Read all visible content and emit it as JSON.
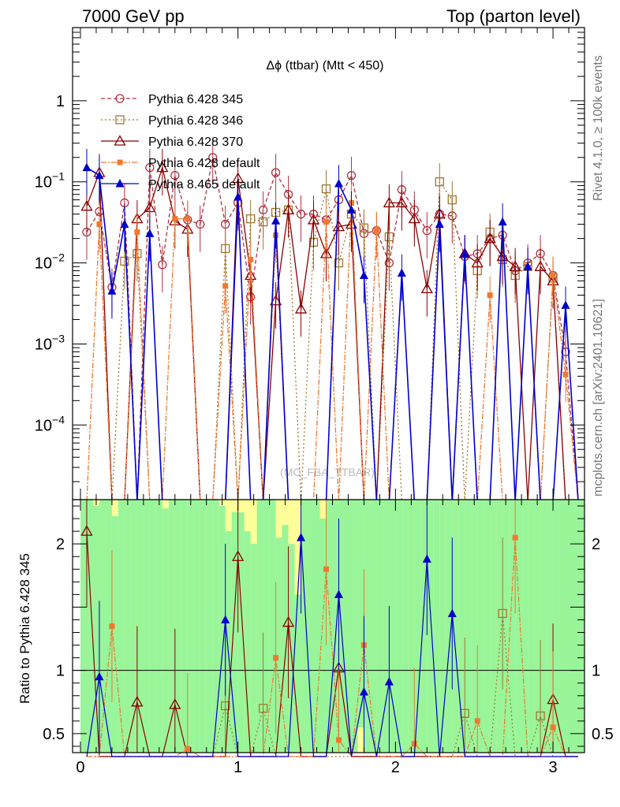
{
  "header": {
    "left": "7000 GeV pp",
    "right": "Top (parton level)"
  },
  "side_labels": {
    "rivet": "Rivet 4.1.0, ≥ 100k events",
    "mcplots": "mcplots.cern.ch [arXiv:2401.10621]"
  },
  "watermark": "(MC_FBA_TTBAR)",
  "colors": {
    "s345": "#b03040",
    "s346": "#a07830",
    "s370": "#8b0000",
    "s6def": "#f07830",
    "s8def": "#0000cc",
    "band_green": "#99f599",
    "band_yellow": "#ffff99"
  },
  "chart_data": [
    {
      "type": "line",
      "panel": "main",
      "title": "Δϕ (ttbar) (Mtt < 450)",
      "yscale": "log",
      "ylim": [
        1.2e-05,
        8
      ],
      "xlim": [
        -0.05,
        3.2
      ],
      "ytick_labels": [
        "1",
        "10^-1",
        "10^-2",
        "10^-3",
        "10^-4"
      ],
      "ytick_values": [
        1,
        0.1,
        0.01,
        0.001,
        0.0001
      ],
      "legend_position": "top-left",
      "x": [
        0.04,
        0.12,
        0.2,
        0.28,
        0.36,
        0.44,
        0.52,
        0.6,
        0.68,
        0.76,
        0.84,
        0.92,
        1.0,
        1.08,
        1.16,
        1.24,
        1.32,
        1.4,
        1.48,
        1.56,
        1.64,
        1.72,
        1.8,
        1.88,
        1.96,
        2.04,
        2.12,
        2.2,
        2.28,
        2.36,
        2.44,
        2.52,
        2.6,
        2.68,
        2.76,
        2.84,
        2.92,
        3.0,
        3.08,
        3.16
      ],
      "series": [
        {
          "name": "Pythia 6.428 345",
          "key": "s345",
          "marker": "circle",
          "dash": "5,3",
          "values": [
            0.024,
            0.043,
            0.005,
            0.055,
            null,
            0.15,
            0.0095,
            0.12,
            0.034,
            0.03,
            0.2,
            0.03,
            0.055,
            0.0038,
            0.045,
            0.13,
            0.07,
            0.04,
            0.04,
            0.034,
            0.06,
            0.12,
            0.023,
            0.025,
            0.01,
            0.08,
            0.045,
            0.025,
            0.04,
            0.038,
            0.012,
            0.013,
            0.02,
            0.022,
            0.008,
            0.01,
            0.013,
            0.007,
            0.0008,
            null
          ]
        },
        {
          "name": "Pythia 6.428 346",
          "key": "s346",
          "marker": "square",
          "dash": "2,3",
          "values": [
            null,
            null,
            null,
            0.0105,
            0.013,
            null,
            null,
            null,
            null,
            null,
            null,
            0.015,
            null,
            0.035,
            0.032,
            0.042,
            0.045,
            null,
            0.018,
            0.082,
            0.01,
            0.04,
            0.027,
            null,
            0.021,
            null,
            null,
            null,
            0.1,
            0.06,
            null,
            0.008,
            0.024,
            0.011,
            0.007,
            0.009,
            null,
            0.0065,
            null,
            null
          ]
        },
        {
          "name": "Pythia 6.428 370",
          "key": "s370",
          "marker": "triangle-open",
          "dash": "",
          "values": [
            0.05,
            0.13,
            null,
            null,
            0.035,
            0.048,
            0.15,
            0.033,
            0.026,
            null,
            null,
            null,
            0.11,
            0.007,
            null,
            0.0034,
            0.045,
            0.0027,
            0.034,
            0.013,
            0.028,
            0.03,
            null,
            null,
            0.055,
            0.055,
            0.035,
            0.0048,
            0.04,
            null,
            0.013,
            0.01,
            0.02,
            0.012,
            0.009,
            null,
            0.009,
            0.006,
            null,
            null
          ]
        },
        {
          "name": "Pythia 6.428 default",
          "key": "s6def",
          "marker": "square-filled",
          "dash": "7,2,2,2",
          "values": [
            null,
            0.03,
            null,
            null,
            0.024,
            null,
            null,
            0.035,
            0.035,
            null,
            null,
            0.0052,
            null,
            0.011,
            null,
            0.022,
            null,
            null,
            null,
            0.032,
            null,
            0.055,
            null,
            0.025,
            null,
            null,
            null,
            null,
            null,
            null,
            null,
            null,
            0.004,
            null,
            null,
            null,
            null,
            0.007,
            0.00042,
            null
          ]
        },
        {
          "name": "Pythia 8.465 default",
          "key": "s8def",
          "marker": "triangle-filled",
          "dash": "",
          "values": [
            0.15,
            0.12,
            0.0045,
            0.03,
            null,
            0.023,
            null,
            null,
            null,
            null,
            null,
            null,
            0.065,
            null,
            null,
            0.033,
            null,
            null,
            null,
            null,
            0.095,
            0.045,
            0.007,
            null,
            null,
            0.0075,
            null,
            null,
            0.03,
            null,
            0.013,
            null,
            null,
            0.032,
            null,
            0.009,
            null,
            null,
            0.003,
            null
          ]
        }
      ]
    },
    {
      "type": "line",
      "panel": "ratio",
      "ylabel": "Ratio to Pythia 6.428 345",
      "ylim": [
        0.35,
        2.35
      ],
      "ytick_labels": [
        "2",
        "1",
        "0.5"
      ],
      "ytick_values": [
        2,
        1,
        0.5
      ],
      "xtick_labels": [
        "0",
        "1",
        "2",
        "3"
      ],
      "xtick_values": [
        0,
        1,
        2,
        3
      ],
      "reference": 1,
      "band_bins": [
        0,
        0.04,
        0.08,
        0.12,
        0.16,
        0.2,
        0.24,
        0.28,
        0.32,
        0.36,
        0.4,
        0.44,
        0.48,
        0.52,
        0.56,
        0.6,
        0.64,
        0.68,
        0.72,
        0.76,
        0.8,
        0.84,
        0.88,
        0.92,
        0.96,
        1.0,
        1.04,
        1.08,
        1.12,
        1.16,
        1.2,
        1.24,
        1.28,
        1.32,
        1.36,
        1.4,
        1.44,
        1.48,
        1.52,
        1.56,
        1.6,
        1.64,
        1.68,
        1.72,
        1.76,
        1.8,
        1.84,
        1.88,
        1.92,
        1.96,
        2.0,
        2.04,
        2.08,
        2.12,
        2.16,
        2.2,
        2.24,
        2.28,
        2.32,
        2.36,
        2.4,
        2.44,
        2.48,
        2.52,
        2.56,
        2.6,
        2.64,
        2.68,
        2.72,
        2.76,
        2.8,
        2.84,
        2.88,
        2.92,
        2.96,
        3.0,
        3.04,
        3.08,
        3.12,
        3.16
      ],
      "band_green": [
        [
          0.35,
          2.35
        ],
        [
          0.35,
          2.35
        ],
        [
          0.35,
          2.3
        ],
        [
          0.35,
          2.35
        ],
        [
          0.35,
          2.35
        ],
        [
          0.35,
          2.22
        ],
        [
          0.35,
          2.35
        ],
        [
          0.35,
          2.35
        ],
        [
          0.35,
          2.35
        ],
        [
          0.35,
          2.35
        ],
        [
          0.35,
          2.35
        ],
        [
          0.35,
          2.35
        ],
        [
          0.35,
          2.35
        ],
        [
          0.35,
          2.28
        ],
        [
          0.35,
          2.35
        ],
        [
          0.35,
          2.35
        ],
        [
          0.35,
          2.35
        ],
        [
          0.35,
          2.35
        ],
        [
          0.35,
          2.35
        ],
        [
          0.35,
          2.35
        ],
        [
          0.35,
          2.35
        ],
        [
          0.35,
          2.35
        ],
        [
          0.35,
          2.3
        ],
        [
          0.35,
          2.1
        ],
        [
          0.35,
          2.25
        ],
        [
          0.35,
          2.25
        ],
        [
          0.35,
          2.1
        ],
        [
          0.35,
          2.0
        ],
        [
          0.35,
          2.35
        ],
        [
          0.35,
          2.35
        ],
        [
          0.35,
          2.35
        ],
        [
          0.35,
          2.05
        ],
        [
          0.35,
          2.15
        ],
        [
          0.35,
          2.0
        ],
        [
          0.35,
          1.6
        ],
        [
          0.35,
          2.35
        ],
        [
          0.35,
          2.35
        ],
        [
          0.35,
          2.35
        ],
        [
          0.35,
          2.2
        ],
        [
          0.35,
          2.35
        ],
        [
          0.35,
          2.35
        ],
        [
          0.35,
          2.35
        ],
        [
          0.35,
          2.35
        ],
        [
          0.35,
          2.35
        ],
        [
          0.55,
          2.35
        ],
        [
          0.35,
          2.35
        ],
        [
          0.35,
          2.35
        ],
        [
          0.35,
          2.35
        ],
        [
          0.35,
          2.35
        ],
        [
          0.35,
          2.35
        ],
        [
          0.35,
          2.35
        ],
        [
          0.35,
          2.35
        ],
        [
          0.35,
          2.35
        ],
        [
          0.35,
          2.35
        ],
        [
          0.35,
          2.35
        ],
        [
          0.35,
          2.35
        ],
        [
          0.35,
          2.35
        ],
        [
          0.35,
          2.35
        ],
        [
          0.35,
          2.35
        ],
        [
          0.35,
          2.35
        ],
        [
          0.35,
          2.35
        ],
        [
          0.35,
          2.35
        ],
        [
          0.35,
          2.35
        ],
        [
          0.35,
          2.35
        ],
        [
          0.35,
          2.35
        ],
        [
          0.35,
          2.35
        ],
        [
          0.35,
          2.35
        ],
        [
          0.35,
          2.35
        ],
        [
          0.35,
          2.35
        ],
        [
          0.35,
          2.35
        ],
        [
          0.35,
          2.35
        ],
        [
          0.35,
          2.35
        ],
        [
          0.35,
          2.35
        ],
        [
          0.35,
          2.35
        ],
        [
          0.35,
          2.35
        ],
        [
          0.35,
          2.35
        ],
        [
          0.35,
          2.35
        ],
        [
          0.35,
          2.35
        ],
        [
          0.35,
          2.35
        ],
        [
          0.35,
          2.35
        ]
      ],
      "series": [
        {
          "key": "s346",
          "marker": "square",
          "values": [
            null,
            null,
            null,
            null,
            null,
            null,
            null,
            null,
            null,
            null,
            null,
            0.72,
            null,
            null,
            0.7,
            null,
            null,
            null,
            null,
            null,
            null,
            null,
            null,
            null,
            null,
            null,
            null,
            null,
            null,
            null,
            0.66,
            null,
            null,
            1.45,
            null,
            null,
            0.64,
            null,
            null,
            null
          ]
        },
        {
          "key": "s370",
          "marker": "triangle-open",
          "values": [
            2.1,
            null,
            null,
            null,
            0.75,
            null,
            null,
            0.73,
            null,
            null,
            null,
            null,
            1.9,
            null,
            null,
            null,
            1.38,
            null,
            null,
            null,
            1.02,
            null,
            null,
            null,
            null,
            null,
            null,
            null,
            null,
            null,
            null,
            null,
            null,
            null,
            null,
            null,
            null,
            0.77,
            null,
            null
          ]
        },
        {
          "key": "s6def",
          "marker": "square-filled",
          "values": [
            null,
            null,
            1.35,
            null,
            null,
            null,
            null,
            null,
            0.38,
            null,
            null,
            null,
            null,
            null,
            null,
            1.1,
            null,
            null,
            null,
            1.8,
            0.45,
            null,
            1.2,
            null,
            null,
            null,
            0.42,
            null,
            null,
            null,
            null,
            0.6,
            null,
            null,
            2.05,
            null,
            null,
            0.55,
            null,
            null
          ]
        },
        {
          "key": "s8def",
          "marker": "triangle-filled",
          "values": [
            null,
            0.95,
            null,
            null,
            null,
            null,
            null,
            null,
            null,
            null,
            null,
            1.4,
            null,
            null,
            null,
            null,
            null,
            2.05,
            null,
            null,
            1.6,
            null,
            0.83,
            null,
            0.91,
            null,
            null,
            1.88,
            null,
            1.45,
            null,
            null,
            null,
            null,
            null,
            null,
            null,
            null,
            null,
            null
          ]
        }
      ]
    }
  ]
}
